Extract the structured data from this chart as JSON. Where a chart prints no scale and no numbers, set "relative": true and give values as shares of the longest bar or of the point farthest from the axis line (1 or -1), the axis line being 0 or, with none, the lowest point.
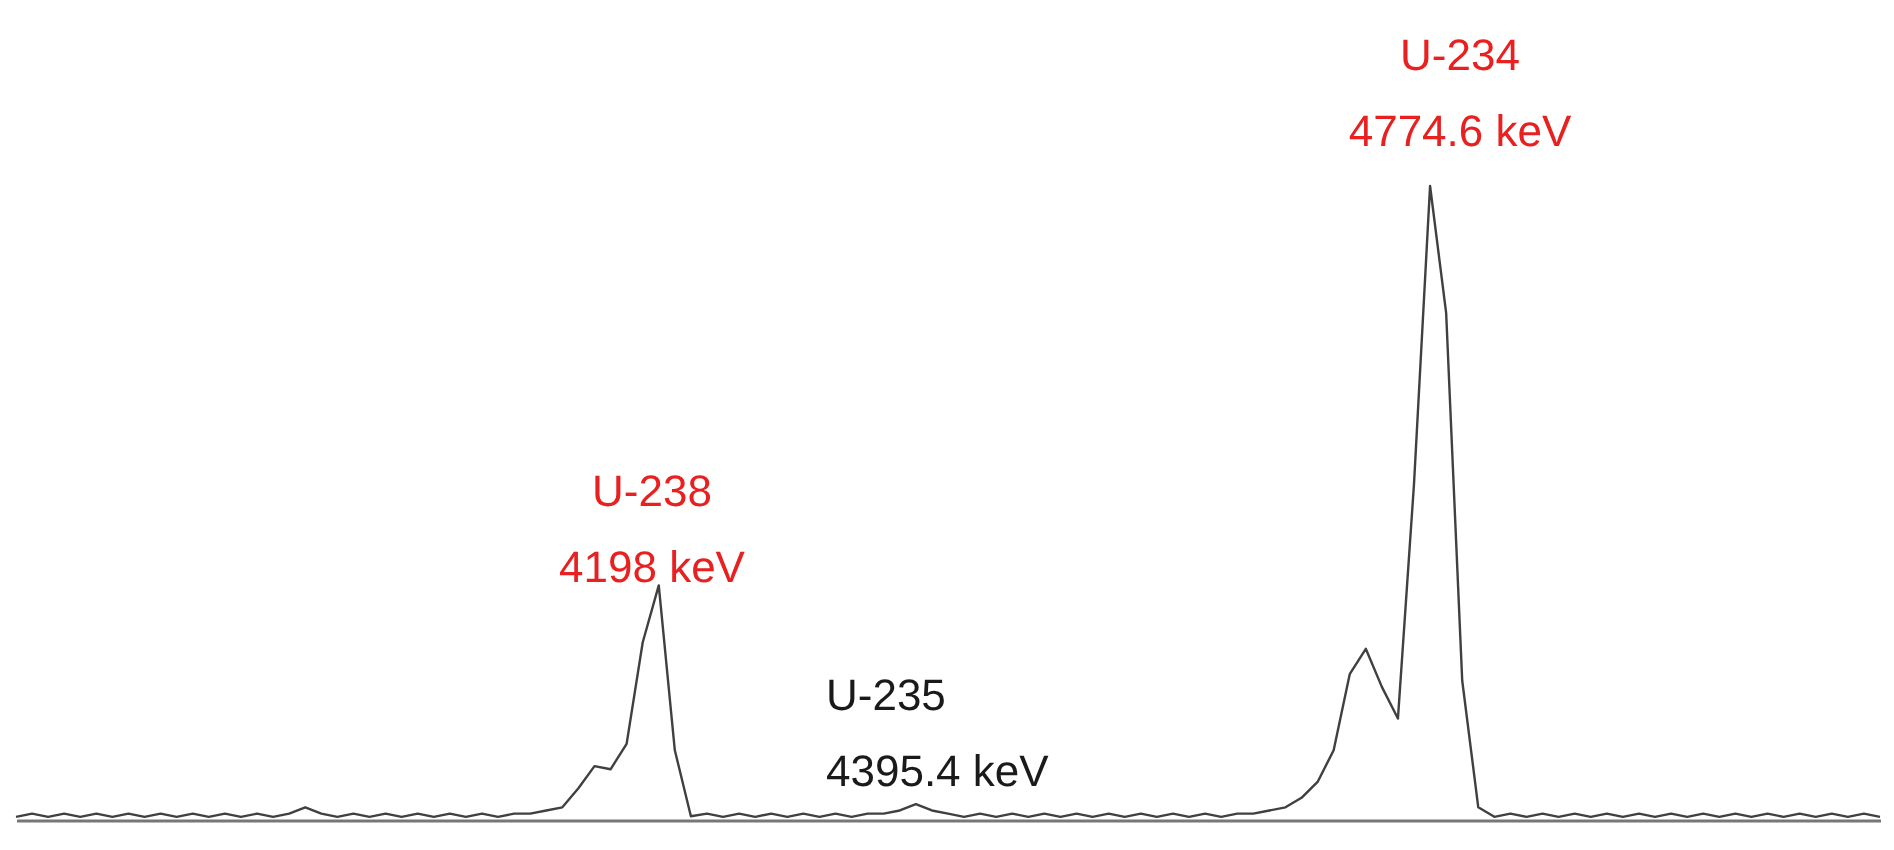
{
  "chart_data": {
    "type": "line",
    "relative": true,
    "categories": [
      null,
      null,
      null,
      null,
      null,
      null,
      null,
      null,
      null,
      null,
      null,
      null,
      null,
      null,
      null,
      null,
      null,
      null,
      null,
      null,
      null,
      null,
      null,
      null,
      null,
      null,
      null,
      null,
      null,
      null,
      null,
      null,
      null,
      null,
      null,
      null,
      null,
      null,
      null,
      null,
      null,
      null,
      null,
      null,
      null,
      null,
      null,
      null,
      null,
      null,
      null,
      null,
      null,
      null,
      null,
      null,
      null,
      null,
      null,
      null,
      null,
      null,
      null,
      null,
      null,
      null,
      null,
      null,
      null,
      null,
      null,
      null,
      null,
      null,
      null,
      null,
      null,
      null,
      null,
      null,
      null,
      null,
      null,
      null,
      null,
      null,
      null,
      null,
      null,
      null,
      null,
      null,
      null,
      null,
      null,
      null,
      null,
      null,
      null,
      null,
      null,
      null,
      null,
      null,
      null,
      null,
      null,
      null,
      null,
      null,
      null,
      null,
      null,
      null,
      null,
      null,
      null
    ],
    "series": [
      {
        "color": "#404040",
        "values": [
          0.005,
          0.01,
          0.005,
          0.01,
          0.005,
          0.01,
          0.005,
          0.01,
          0.005,
          0.01,
          0.005,
          0.01,
          0.005,
          0.01,
          0.005,
          0.01,
          0.005,
          0.01,
          0.02,
          0.01,
          0.005,
          0.01,
          0.005,
          0.01,
          0.005,
          0.01,
          0.005,
          0.01,
          0.005,
          0.01,
          0.005,
          0.01,
          0.01,
          0.015,
          0.02,
          0.05,
          0.085,
          0.08,
          0.12,
          0.28,
          0.37,
          0.11,
          0.006,
          0.01,
          0.005,
          0.01,
          0.005,
          0.01,
          0.005,
          0.01,
          0.005,
          0.01,
          0.005,
          0.01,
          0.01,
          0.015,
          0.025,
          0.015,
          0.01,
          0.005,
          0.01,
          0.005,
          0.01,
          0.005,
          0.01,
          0.005,
          0.01,
          0.005,
          0.01,
          0.005,
          0.01,
          0.005,
          0.01,
          0.005,
          0.01,
          0.005,
          0.01,
          0.01,
          0.015,
          0.02,
          0.035,
          0.06,
          0.11,
          0.23,
          0.27,
          0.21,
          0.16,
          0.53,
          1,
          0.8,
          0.22,
          0.02,
          0.005,
          0.01,
          0.005,
          0.01,
          0.005,
          0.01,
          0.005,
          0.01,
          0.005,
          0.01,
          0.005,
          0.01,
          0.005,
          0.01,
          0.005,
          0.01,
          0.005,
          0.01,
          0.005,
          0.01,
          0.005,
          0.01,
          0.005,
          0.01,
          0.005
        ]
      }
    ],
    "annotations": [
      "U-238\n4198 keV",
      "U-235\n4395.4 keV",
      "U-234\n4774.6 keV"
    ]
  }
}
